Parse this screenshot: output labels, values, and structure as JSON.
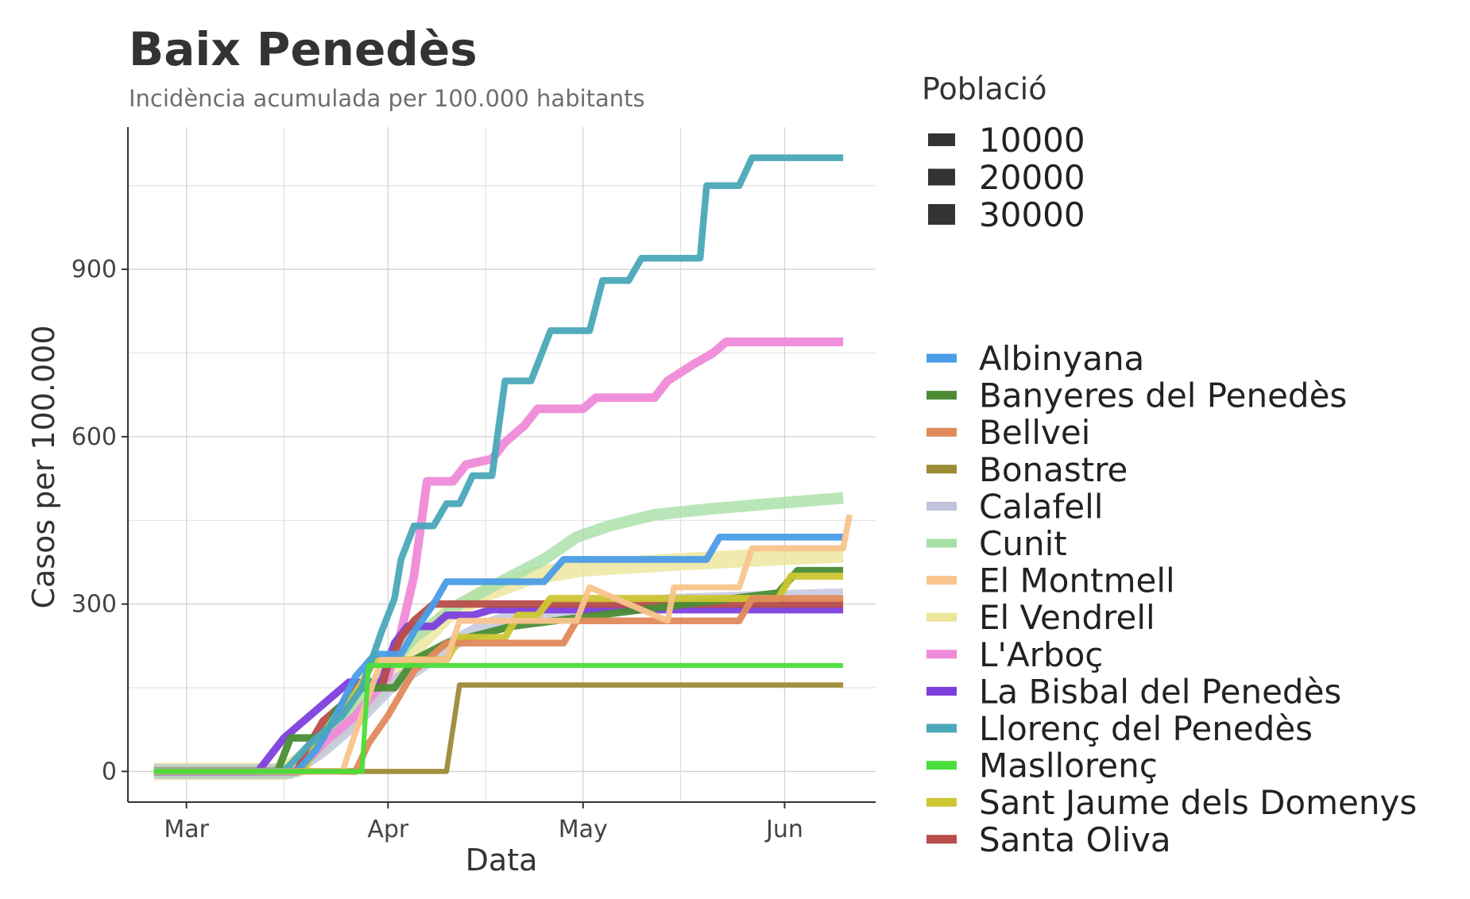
{
  "chart_data": {
    "type": "line",
    "title": "Baix Penedès",
    "subtitle": "Incidència acumulada per 100.000 habitants",
    "xlabel": "Data",
    "ylabel": "Casos per 100.000",
    "x_ticks": [
      {
        "label": "Mar",
        "date": "2020-03-01"
      },
      {
        "label": "Apr",
        "date": "2020-04-01"
      },
      {
        "label": "May",
        "date": "2020-05-01"
      },
      {
        "label": "Jun",
        "date": "2020-06-01"
      }
    ],
    "y_ticks": [
      0,
      300,
      600,
      900
    ],
    "xlim": [
      "2020-02-21",
      "2020-06-15"
    ],
    "ylim": [
      -55,
      1155
    ],
    "grid": true,
    "legend_size_title": "Població",
    "legend_size_entries": [
      "10000",
      "20000",
      "30000"
    ],
    "series": [
      {
        "name": "Albinyana",
        "color": "#4a9de6",
        "population": 2400,
        "points": [
          [
            "2020-02-25",
            0
          ],
          [
            "2020-03-18",
            0
          ],
          [
            "2020-03-21",
            40
          ],
          [
            "2020-03-24",
            100
          ],
          [
            "2020-03-27",
            170
          ],
          [
            "2020-03-30",
            210
          ],
          [
            "2020-04-03",
            210
          ],
          [
            "2020-04-05",
            250
          ],
          [
            "2020-04-08",
            300
          ],
          [
            "2020-04-10",
            340
          ],
          [
            "2020-04-25",
            340
          ],
          [
            "2020-04-28",
            380
          ],
          [
            "2020-05-20",
            380
          ],
          [
            "2020-05-22",
            420
          ],
          [
            "2020-06-10",
            420
          ]
        ]
      },
      {
        "name": "Banyeres del Penedès",
        "color": "#4a8d35",
        "population": 3200,
        "points": [
          [
            "2020-02-25",
            0
          ],
          [
            "2020-03-15",
            0
          ],
          [
            "2020-03-17",
            60
          ],
          [
            "2020-03-22",
            60
          ],
          [
            "2020-03-24",
            110
          ],
          [
            "2020-03-28",
            150
          ],
          [
            "2020-04-02",
            150
          ],
          [
            "2020-04-05",
            200
          ],
          [
            "2020-04-10",
            230
          ],
          [
            "2020-04-20",
            260
          ],
          [
            "2020-05-10",
            290
          ],
          [
            "2020-05-31",
            320
          ],
          [
            "2020-06-03",
            360
          ],
          [
            "2020-06-10",
            360
          ]
        ]
      },
      {
        "name": "Bellvei",
        "color": "#e08a5b",
        "population": 2300,
        "points": [
          [
            "2020-02-25",
            0
          ],
          [
            "2020-03-27",
            0
          ],
          [
            "2020-03-29",
            50
          ],
          [
            "2020-04-01",
            100
          ],
          [
            "2020-04-05",
            180
          ],
          [
            "2020-04-10",
            230
          ],
          [
            "2020-04-28",
            230
          ],
          [
            "2020-04-30",
            270
          ],
          [
            "2020-05-25",
            270
          ],
          [
            "2020-05-27",
            310
          ],
          [
            "2020-06-10",
            310
          ]
        ]
      },
      {
        "name": "Bonastre",
        "color": "#9c8a35",
        "population": 700,
        "points": [
          [
            "2020-02-25",
            0
          ],
          [
            "2020-04-10",
            0
          ],
          [
            "2020-04-12",
            155
          ],
          [
            "2020-06-10",
            155
          ]
        ]
      },
      {
        "name": "Calafell",
        "color": "#bfc3dc",
        "population": 25000,
        "points": [
          [
            "2020-02-25",
            0
          ],
          [
            "2020-03-17",
            0
          ],
          [
            "2020-03-22",
            40
          ],
          [
            "2020-03-27",
            90
          ],
          [
            "2020-04-01",
            150
          ],
          [
            "2020-04-06",
            190
          ],
          [
            "2020-04-11",
            230
          ],
          [
            "2020-04-16",
            260
          ],
          [
            "2020-04-21",
            280
          ],
          [
            "2020-05-01",
            295
          ],
          [
            "2020-05-15",
            305
          ],
          [
            "2020-06-10",
            315
          ]
        ]
      },
      {
        "name": "Cunit",
        "color": "#a6e0a6",
        "population": 13000,
        "points": [
          [
            "2020-02-25",
            0
          ],
          [
            "2020-03-18",
            0
          ],
          [
            "2020-03-24",
            80
          ],
          [
            "2020-03-30",
            160
          ],
          [
            "2020-04-05",
            240
          ],
          [
            "2020-04-12",
            300
          ],
          [
            "2020-04-20",
            350
          ],
          [
            "2020-04-25",
            380
          ],
          [
            "2020-04-30",
            420
          ],
          [
            "2020-05-05",
            440
          ],
          [
            "2020-05-12",
            460
          ],
          [
            "2020-05-20",
            470
          ],
          [
            "2020-05-30",
            480
          ],
          [
            "2020-06-10",
            490
          ]
        ]
      },
      {
        "name": "El Montmell",
        "color": "#f8c48c",
        "population": 1500,
        "points": [
          [
            "2020-02-25",
            0
          ],
          [
            "2020-03-25",
            0
          ],
          [
            "2020-03-27",
            70
          ],
          [
            "2020-03-31",
            200
          ],
          [
            "2020-04-10",
            200
          ],
          [
            "2020-04-12",
            270
          ],
          [
            "2020-04-30",
            270
          ],
          [
            "2020-05-02",
            330
          ],
          [
            "2020-05-14",
            270
          ],
          [
            "2020-05-15",
            330
          ],
          [
            "2020-05-25",
            330
          ],
          [
            "2020-05-27",
            400
          ],
          [
            "2020-06-10",
            400
          ],
          [
            "2020-06-11",
            460
          ]
        ]
      },
      {
        "name": "El Vendrell",
        "color": "#ece59a",
        "population": 37000,
        "points": [
          [
            "2020-02-25",
            0
          ],
          [
            "2020-03-16",
            0
          ],
          [
            "2020-03-21",
            40
          ],
          [
            "2020-03-26",
            90
          ],
          [
            "2020-03-31",
            150
          ],
          [
            "2020-04-05",
            220
          ],
          [
            "2020-04-10",
            280
          ],
          [
            "2020-04-16",
            320
          ],
          [
            "2020-04-23",
            350
          ],
          [
            "2020-05-01",
            365
          ],
          [
            "2020-05-15",
            375
          ],
          [
            "2020-05-31",
            385
          ],
          [
            "2020-06-10",
            390
          ]
        ]
      },
      {
        "name": "L'Arboç",
        "color": "#ef8ad8",
        "population": 5500,
        "points": [
          [
            "2020-02-25",
            0
          ],
          [
            "2020-03-18",
            0
          ],
          [
            "2020-03-22",
            50
          ],
          [
            "2020-03-27",
            100
          ],
          [
            "2020-04-01",
            170
          ],
          [
            "2020-04-03",
            250
          ],
          [
            "2020-04-05",
            350
          ],
          [
            "2020-04-07",
            520
          ],
          [
            "2020-04-11",
            520
          ],
          [
            "2020-04-13",
            550
          ],
          [
            "2020-04-17",
            560
          ],
          [
            "2020-04-19",
            590
          ],
          [
            "2020-04-22",
            620
          ],
          [
            "2020-04-24",
            650
          ],
          [
            "2020-05-01",
            650
          ],
          [
            "2020-05-03",
            670
          ],
          [
            "2020-05-12",
            670
          ],
          [
            "2020-05-14",
            700
          ],
          [
            "2020-05-18",
            730
          ],
          [
            "2020-05-21",
            750
          ],
          [
            "2020-05-23",
            770
          ],
          [
            "2020-06-10",
            770
          ]
        ]
      },
      {
        "name": "La Bisbal del Penedès",
        "color": "#7d3fdc",
        "population": 3500,
        "points": [
          [
            "2020-02-25",
            0
          ],
          [
            "2020-03-12",
            0
          ],
          [
            "2020-03-14",
            30
          ],
          [
            "2020-03-16",
            60
          ],
          [
            "2020-03-19",
            90
          ],
          [
            "2020-03-23",
            130
          ],
          [
            "2020-03-26",
            160
          ],
          [
            "2020-03-31",
            160
          ],
          [
            "2020-04-02",
            230
          ],
          [
            "2020-04-04",
            260
          ],
          [
            "2020-04-08",
            260
          ],
          [
            "2020-04-10",
            280
          ],
          [
            "2020-04-14",
            280
          ],
          [
            "2020-04-17",
            290
          ],
          [
            "2020-06-10",
            290
          ]
        ]
      },
      {
        "name": "Llorenç del Penedès",
        "color": "#4aa8b8",
        "population": 2300,
        "points": [
          [
            "2020-02-25",
            0
          ],
          [
            "2020-03-16",
            0
          ],
          [
            "2020-03-20",
            50
          ],
          [
            "2020-03-25",
            100
          ],
          [
            "2020-03-28",
            150
          ],
          [
            "2020-03-31",
            250
          ],
          [
            "2020-04-02",
            310
          ],
          [
            "2020-04-03",
            380
          ],
          [
            "2020-04-05",
            440
          ],
          [
            "2020-04-08",
            440
          ],
          [
            "2020-04-10",
            480
          ],
          [
            "2020-04-12",
            480
          ],
          [
            "2020-04-14",
            530
          ],
          [
            "2020-04-17",
            530
          ],
          [
            "2020-04-19",
            700
          ],
          [
            "2020-04-23",
            700
          ],
          [
            "2020-04-26",
            790
          ],
          [
            "2020-05-02",
            790
          ],
          [
            "2020-05-04",
            880
          ],
          [
            "2020-05-08",
            880
          ],
          [
            "2020-05-10",
            920
          ],
          [
            "2020-05-19",
            920
          ],
          [
            "2020-05-20",
            1050
          ],
          [
            "2020-05-25",
            1050
          ],
          [
            "2020-05-27",
            1100
          ],
          [
            "2020-06-10",
            1100
          ]
        ]
      },
      {
        "name": "Masllorenç",
        "color": "#4ade3a",
        "population": 520,
        "points": [
          [
            "2020-02-25",
            0
          ],
          [
            "2020-03-28",
            0
          ],
          [
            "2020-03-29",
            190
          ],
          [
            "2020-06-10",
            190
          ]
        ]
      },
      {
        "name": "Sant Jaume dels Domenys",
        "color": "#cdc633",
        "population": 2800,
        "points": [
          [
            "2020-02-25",
            0
          ],
          [
            "2020-03-19",
            0
          ],
          [
            "2020-03-21",
            50
          ],
          [
            "2020-03-24",
            100
          ],
          [
            "2020-03-27",
            140
          ],
          [
            "2020-03-30",
            200
          ],
          [
            "2020-04-10",
            200
          ],
          [
            "2020-04-12",
            240
          ],
          [
            "2020-04-19",
            240
          ],
          [
            "2020-04-21",
            280
          ],
          [
            "2020-04-24",
            280
          ],
          [
            "2020-04-26",
            310
          ],
          [
            "2020-05-31",
            310
          ],
          [
            "2020-06-02",
            350
          ],
          [
            "2020-06-10",
            350
          ]
        ]
      },
      {
        "name": "Santa Oliva",
        "color": "#b84d4b",
        "population": 3300,
        "points": [
          [
            "2020-02-25",
            0
          ],
          [
            "2020-03-18",
            0
          ],
          [
            "2020-03-20",
            50
          ],
          [
            "2020-03-22",
            90
          ],
          [
            "2020-03-25",
            120
          ],
          [
            "2020-03-27",
            150
          ],
          [
            "2020-03-31",
            150
          ],
          [
            "2020-04-01",
            190
          ],
          [
            "2020-04-03",
            240
          ],
          [
            "2020-04-05",
            270
          ],
          [
            "2020-04-08",
            300
          ],
          [
            "2020-06-10",
            300
          ]
        ]
      }
    ]
  }
}
